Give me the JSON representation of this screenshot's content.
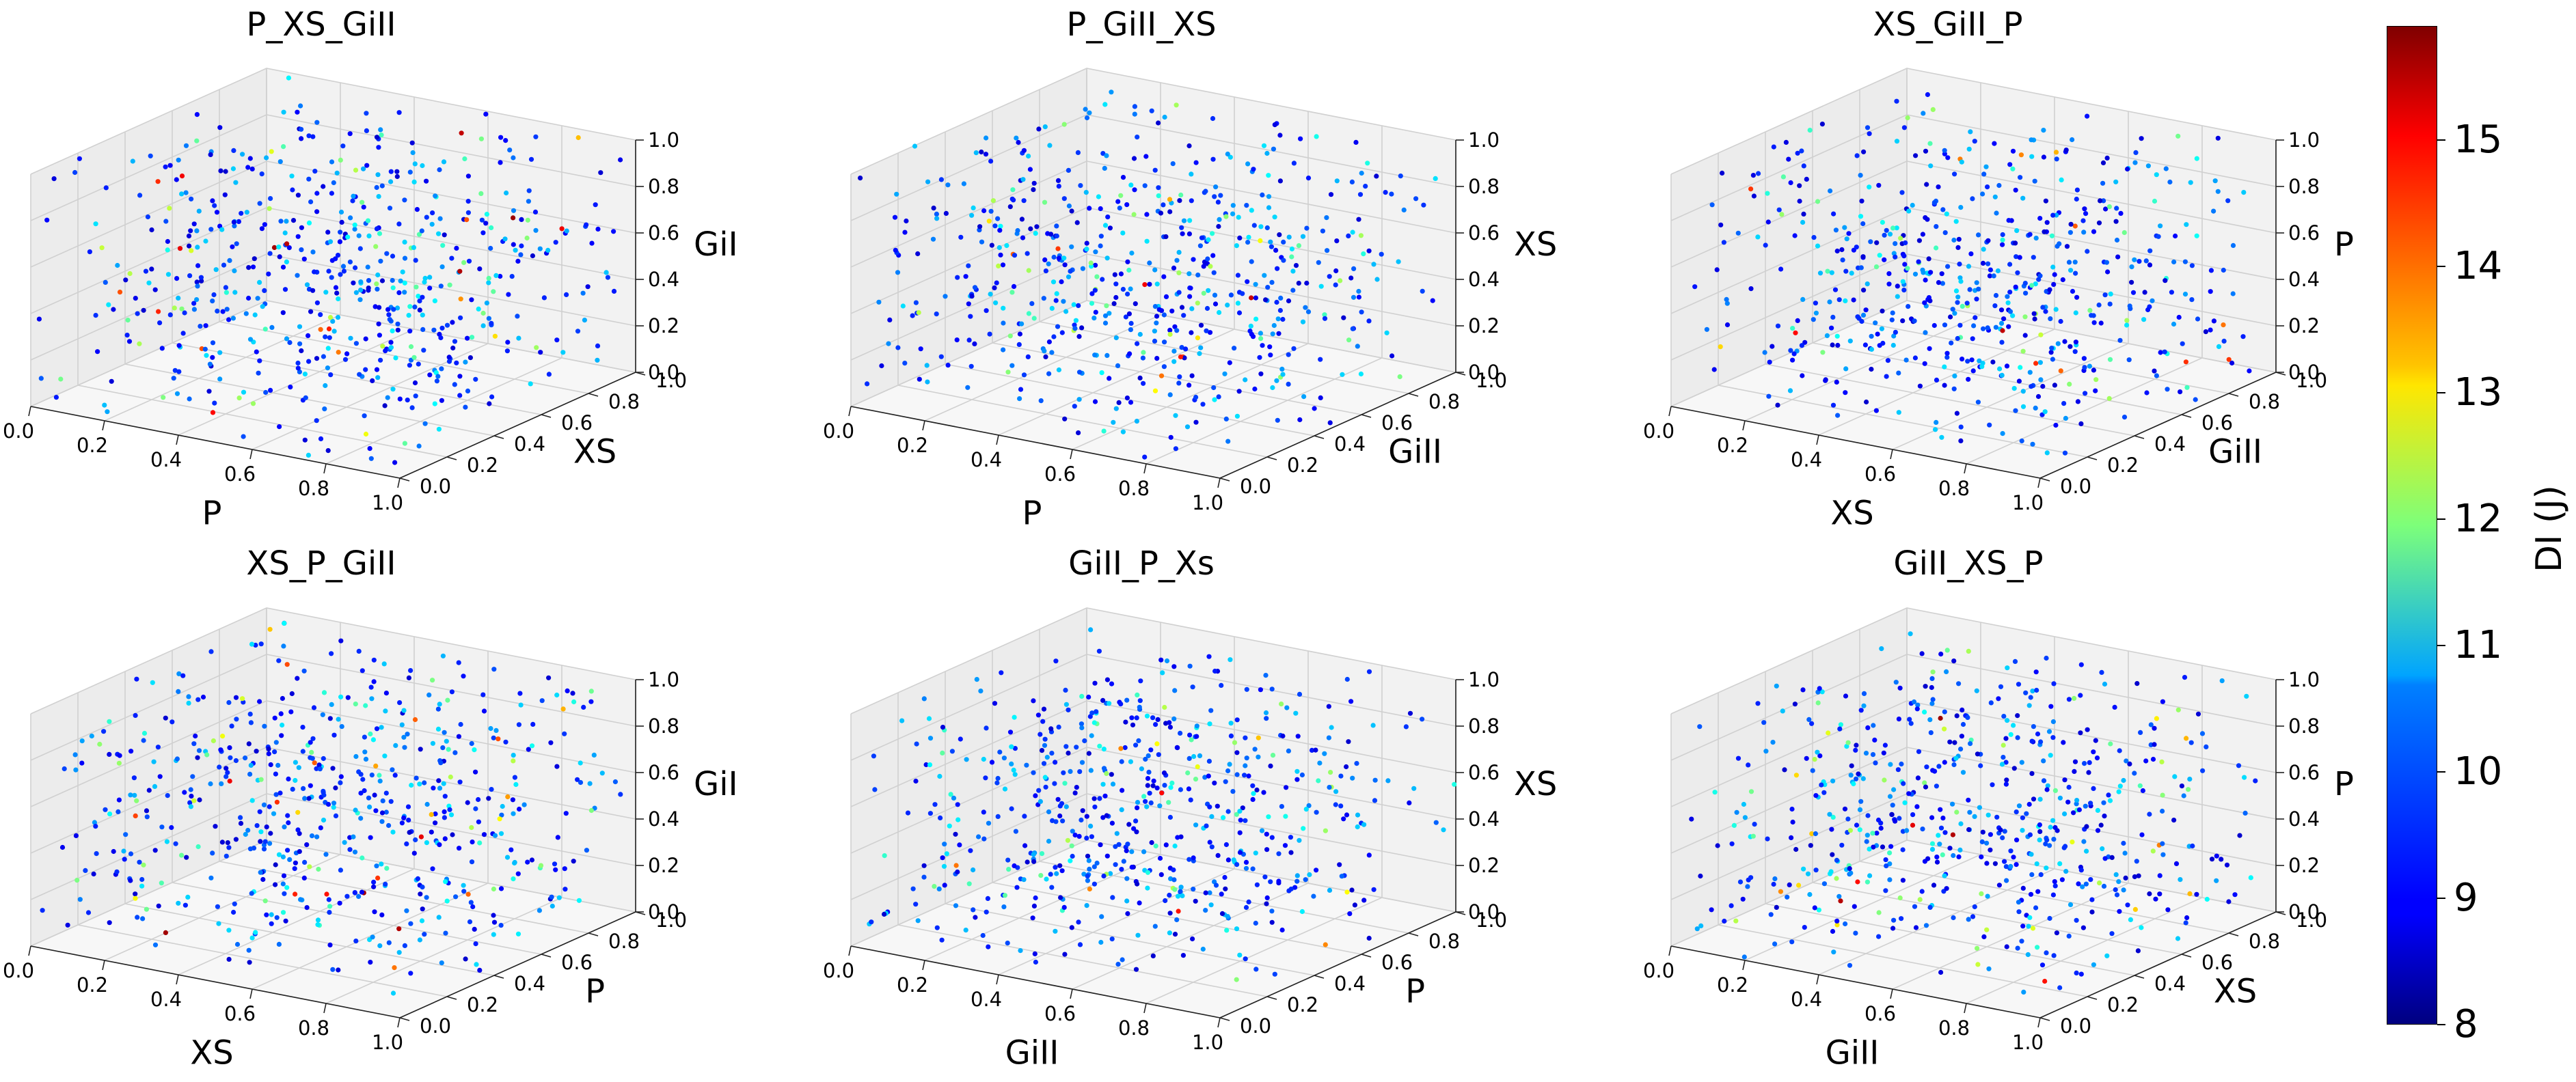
{
  "chart_data": [
    {
      "type": "scatter3d",
      "title": "P_XS_GiII",
      "xlabel": "P",
      "ylabel": "XS",
      "zlabel": "GiI",
      "xlim": [
        0,
        1
      ],
      "ylim": [
        0,
        1
      ],
      "zlim": [
        0,
        1
      ],
      "xticks": [
        "0.0",
        "0.2",
        "0.4",
        "0.6",
        "0.8",
        "1.0"
      ],
      "yticks": [
        "0.0",
        "0.2",
        "0.4",
        "0.6",
        "0.8",
        "1.0"
      ],
      "zticks": [
        "0.0",
        "0.2",
        "0.4",
        "0.6",
        "0.8",
        "1.0"
      ],
      "point_count_estimate": 600,
      "color_variable": "DI (J)",
      "seed": 11
    },
    {
      "type": "scatter3d",
      "title": "P_GiII_XS",
      "xlabel": "P",
      "ylabel": "GiII",
      "zlabel": "XS",
      "xlim": [
        0,
        1
      ],
      "ylim": [
        0,
        1
      ],
      "zlim": [
        0,
        1
      ],
      "xticks": [
        "0.0",
        "0.2",
        "0.4",
        "0.6",
        "0.8",
        "1.0"
      ],
      "yticks": [
        "0.0",
        "0.2",
        "0.4",
        "0.6",
        "0.8",
        "1.0"
      ],
      "zticks": [
        "0.0",
        "0.2",
        "0.4",
        "0.6",
        "0.8",
        "1.0"
      ],
      "point_count_estimate": 600,
      "color_variable": "DI (J)",
      "seed": 23
    },
    {
      "type": "scatter3d",
      "title": "XS_GiII_P",
      "xlabel": "XS",
      "ylabel": "GiII",
      "zlabel": "P",
      "xlim": [
        0,
        1
      ],
      "ylim": [
        0,
        1
      ],
      "zlim": [
        0,
        1
      ],
      "xticks": [
        "0.0",
        "0.2",
        "0.4",
        "0.6",
        "0.8",
        "1.0"
      ],
      "yticks": [
        "0.0",
        "0.2",
        "0.4",
        "0.6",
        "0.8",
        "1.0"
      ],
      "zticks": [
        "0.0",
        "0.2",
        "0.4",
        "0.6",
        "0.8",
        "1.0"
      ],
      "point_count_estimate": 600,
      "color_variable": "DI (J)",
      "seed": 37
    },
    {
      "type": "scatter3d",
      "title": "XS_P_GiII",
      "xlabel": "XS",
      "ylabel": "P",
      "zlabel": "GiI",
      "xlim": [
        0,
        1
      ],
      "ylim": [
        0,
        1
      ],
      "zlim": [
        0,
        1
      ],
      "xticks": [
        "0.0",
        "0.2",
        "0.4",
        "0.6",
        "0.8",
        "1.0"
      ],
      "yticks": [
        "0.0",
        "0.2",
        "0.4",
        "0.6",
        "0.8",
        "1.0"
      ],
      "zticks": [
        "0.0",
        "0.2",
        "0.4",
        "0.6",
        "0.8",
        "1.0"
      ],
      "point_count_estimate": 600,
      "color_variable": "DI (J)",
      "seed": 41
    },
    {
      "type": "scatter3d",
      "title": "GiII_P_Xs",
      "xlabel": "GiII",
      "ylabel": "P",
      "zlabel": "XS",
      "xlim": [
        0,
        1
      ],
      "ylim": [
        0,
        1
      ],
      "zlim": [
        0,
        1
      ],
      "xticks": [
        "0.0",
        "0.2",
        "0.4",
        "0.6",
        "0.8",
        "1.0"
      ],
      "yticks": [
        "0.0",
        "0.2",
        "0.4",
        "0.6",
        "0.8",
        "1.0"
      ],
      "zticks": [
        "0.0",
        "0.2",
        "0.4",
        "0.6",
        "0.8",
        "1.0"
      ],
      "point_count_estimate": 600,
      "color_variable": "DI (J)",
      "seed": 53
    },
    {
      "type": "scatter3d",
      "title": "GiII_XS_P",
      "xlabel": "GiII",
      "ylabel": "XS",
      "zlabel": "P",
      "xlim": [
        0,
        1
      ],
      "ylim": [
        0,
        1
      ],
      "zlim": [
        0,
        1
      ],
      "xticks": [
        "0.0",
        "0.2",
        "0.4",
        "0.6",
        "0.8",
        "1.0"
      ],
      "yticks": [
        "0.0",
        "0.2",
        "0.4",
        "0.6",
        "0.8",
        "1.0"
      ],
      "zticks": [
        "0.0",
        "0.2",
        "0.4",
        "0.6",
        "0.8",
        "1.0"
      ],
      "point_count_estimate": 600,
      "color_variable": "DI (J)",
      "seed": 67
    }
  ],
  "colorbar": {
    "label": "DI (J)",
    "colormap": "jet",
    "range": [
      8,
      15.9
    ],
    "ticks": [
      "8",
      "9",
      "10",
      "11",
      "12",
      "13",
      "14",
      "15"
    ],
    "tick_values": [
      8,
      9,
      10,
      11,
      12,
      13,
      14,
      15
    ]
  },
  "colors": {
    "pane_side": "#ececec",
    "pane_back": "#f2f2f2",
    "pane_floor": "#f7f7f7",
    "grid": "#d0d0d0"
  }
}
